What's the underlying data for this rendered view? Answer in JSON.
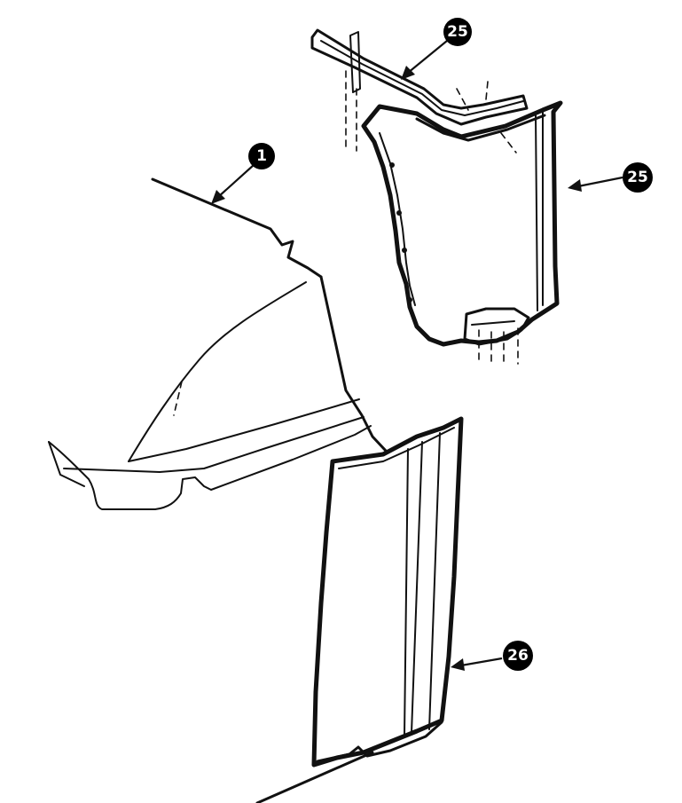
{
  "callouts": [
    {
      "id": "part-1",
      "label": "1"
    },
    {
      "id": "part-25-top",
      "label": "25"
    },
    {
      "id": "part-25",
      "label": "25"
    },
    {
      "id": "part-26",
      "label": "26"
    }
  ],
  "colors": {
    "ink": "#111111",
    "background": "#ffffff",
    "callout_fill": "#000000",
    "callout_text": "#ffffff"
  }
}
